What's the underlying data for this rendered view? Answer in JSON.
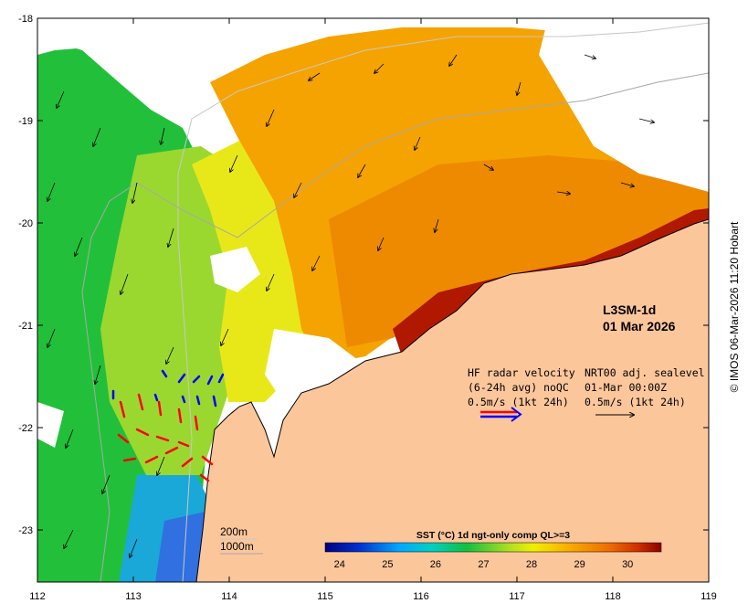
{
  "map": {
    "product_label": "L3SM-1d",
    "date_label": "01 Mar 2026",
    "credit": "© IMOS 06-Mar-2026 11:20 Hobart",
    "lon_ticks": [
      "112",
      "113",
      "114",
      "115",
      "116",
      "117",
      "118",
      "119"
    ],
    "lat_ticks": [
      "-18",
      "-19",
      "-20",
      "-21",
      "-22",
      "-23"
    ],
    "hf_legend": {
      "line1": "HF radar velocity",
      "line2": "(6-24h avg) noQC",
      "line3": "0.5m/s (1kt 24h)"
    },
    "sealevel_legend": {
      "line1": "NRT00 adj. sealevel",
      "line2": "01-Mar 00:00Z",
      "line3": "0.5m/s (1kt 24h)"
    },
    "isobath_legend": [
      "200m",
      "1000m"
    ],
    "colorbar": {
      "title": "SST (°C) 1d ngt-only comp QL>=3",
      "ticks": [
        "24",
        "25",
        "26",
        "27",
        "28",
        "29",
        "30"
      ],
      "min": 23.7,
      "max": 30.7
    },
    "colors": {
      "land": "#fcc69b",
      "hf_red": "#ff0000",
      "hf_blue": "#0000ff"
    }
  }
}
